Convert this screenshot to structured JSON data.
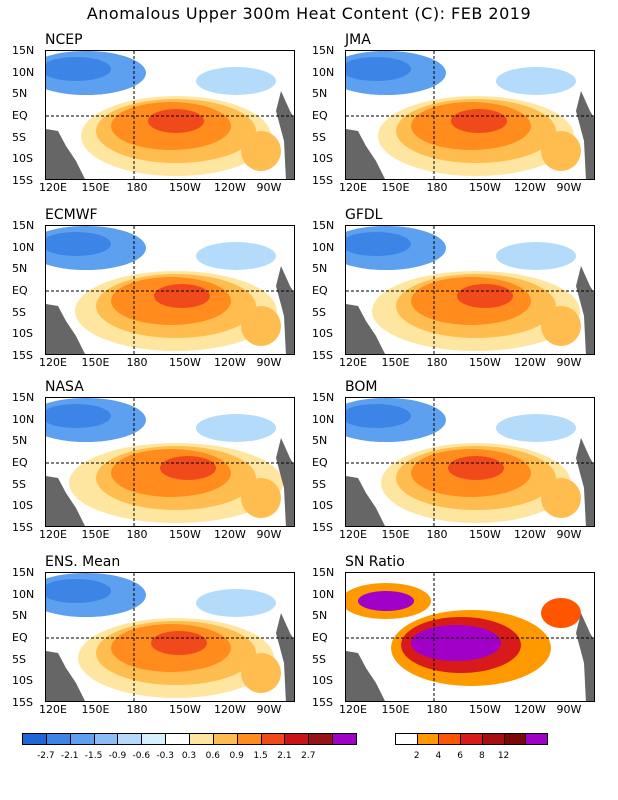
{
  "title": "Anomalous Upper 300m Heat Content (C): FEB 2019",
  "panels": [
    {
      "name": "NCEP",
      "kind": "anom"
    },
    {
      "name": "JMA",
      "kind": "anom"
    },
    {
      "name": "ECMWF",
      "kind": "anom"
    },
    {
      "name": "GFDL",
      "kind": "anom"
    },
    {
      "name": "NASA",
      "kind": "anom"
    },
    {
      "name": "BOM",
      "kind": "anom"
    },
    {
      "name": "ENS. Mean",
      "kind": "anom"
    },
    {
      "name": "SN Ratio",
      "kind": "sn"
    }
  ],
  "axes": {
    "x_ticks": [
      "120E",
      "150E",
      "180",
      "150W",
      "120W",
      "90W"
    ],
    "y_ticks": [
      "15N",
      "10N",
      "5N",
      "EQ",
      "5S",
      "10S",
      "15S"
    ]
  },
  "chart_data": [
    {
      "type": "heatmap",
      "title": "Anomalous Upper 300m Heat Content (C): FEB 2019",
      "xlim": [
        "120E",
        "80W"
      ],
      "ylim": [
        "15S",
        "15N"
      ],
      "anomaly_colorbar": {
        "labels": [
          "-2.7",
          "-2.1",
          "-1.5",
          "-0.9",
          "-0.6",
          "-0.3",
          "0.3",
          "0.6",
          "0.9",
          "1.5",
          "2.1",
          "2.7"
        ],
        "colors": [
          "#1f66d6",
          "#3c84e6",
          "#5ea0f0",
          "#8cbcf6",
          "#b4dcfa",
          "#d8f0fc",
          "#ffffff",
          "#ffe6a0",
          "#ffbd50",
          "#ff8c1c",
          "#f04a1c",
          "#c81414",
          "#961414",
          "#a000c8"
        ]
      },
      "sn_colorbar": {
        "labels": [
          "2",
          "4",
          "6",
          "8",
          "12"
        ],
        "colors": [
          "#ffffff",
          "#ff9900",
          "#ff5500",
          "#d81a1a",
          "#a80e0e",
          "#7a0808",
          "#a000c8"
        ]
      }
    }
  ]
}
